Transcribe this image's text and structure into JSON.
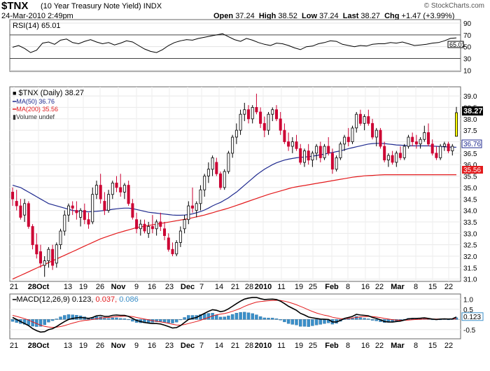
{
  "header": {
    "symbol": "$TNX",
    "name": "(10 Year Treasury Note Yield)",
    "exchange": "INDX",
    "date": "24-Mar-2010 2:49pm",
    "open": "37.24",
    "high": "38.52",
    "low": "37.24",
    "last": "38.27",
    "change": "+1.47 (+3.99%)",
    "credit": "© StockCharts.com"
  },
  "rsi": {
    "label": "RSI(14) 65.01",
    "value": 65.01,
    "ticks": [
      "90",
      "70",
      "50",
      "30",
      "10"
    ],
    "tag": "65.01",
    "values": [
      49,
      52,
      47,
      40,
      44,
      56,
      58,
      54,
      61,
      63,
      57,
      55,
      59,
      62,
      58,
      55,
      57,
      53,
      56,
      60,
      58,
      52,
      46,
      42,
      40,
      45,
      52,
      57,
      60,
      62,
      61,
      64,
      66,
      68,
      70,
      72,
      67,
      62,
      59,
      64,
      61,
      57,
      54,
      52,
      56,
      55,
      52,
      48,
      45,
      50,
      51,
      55,
      57,
      60,
      59,
      54,
      52,
      50,
      52,
      51,
      54,
      55,
      55,
      57,
      56,
      58,
      55,
      52,
      53,
      54,
      56,
      57,
      60,
      64,
      65
    ]
  },
  "price": {
    "label": "$TNX (Daily) 38.27",
    "ma50_label": "MA(50) 36.76",
    "ma200_label": "MA(200) 35.56",
    "volume_label": "Volume undef",
    "ticks": [
      "39.0",
      "38.5",
      "38.0",
      "37.5",
      "37.0",
      "36.5",
      "36.0",
      "35.5",
      "35.0",
      "34.5",
      "34.0",
      "33.5",
      "33.0",
      "32.5",
      "32.0",
      "31.5",
      "31.0"
    ],
    "tag_last": "38.27",
    "tag_ma50": "36.76",
    "tag_ma200": "35.56",
    "colors": {
      "up": "#000000",
      "down": "#cc0033",
      "last": "#ffff00",
      "ma50": "#1f2a8f",
      "ma200": "#e31a1c"
    }
  },
  "macd": {
    "label_prefix": "MACD(12,26,9) 0.123,",
    "signal_value": "0.037,",
    "hist_value": "0.086",
    "ticks": [
      "1.0",
      "0.5",
      "0.123",
      "-0.5"
    ],
    "colors": {
      "macd": "#000000",
      "signal": "#e31a1c",
      "hist": "#3a8fc9",
      "hist_text": "#3a8fc9"
    }
  },
  "x_axis": {
    "labels": [
      {
        "t": "21",
        "x": 20
      },
      {
        "t": "28Oct",
        "x": 55
      },
      {
        "t": "13",
        "x": 97
      },
      {
        "t": "19",
        "x": 119
      },
      {
        "t": "26",
        "x": 143
      },
      {
        "t": "Nov",
        "x": 169
      },
      {
        "t": "9",
        "x": 195
      },
      {
        "t": "16",
        "x": 217
      },
      {
        "t": "23",
        "x": 242
      },
      {
        "t": "Dec",
        "x": 268
      },
      {
        "t": "7",
        "x": 288
      },
      {
        "t": "14",
        "x": 313
      },
      {
        "t": "21",
        "x": 336
      },
      {
        "t": "28",
        "x": 356
      },
      {
        "t": "2010",
        "x": 376
      },
      {
        "t": "11",
        "x": 402
      },
      {
        "t": "19",
        "x": 427
      },
      {
        "t": "25",
        "x": 447
      },
      {
        "t": "Feb",
        "x": 474
      },
      {
        "t": "8",
        "x": 497
      },
      {
        "t": "16",
        "x": 522
      },
      {
        "t": "22",
        "x": 542
      },
      {
        "t": "Mar",
        "x": 568
      },
      {
        "t": "8",
        "x": 594
      },
      {
        "t": "15",
        "x": 618
      },
      {
        "t": "22",
        "x": 641
      }
    ]
  },
  "chart_data": {
    "type": "candlestick",
    "title": "$TNX (10 Year Treasury Note Yield) Daily",
    "y_range": [
      30.9,
      39.4
    ],
    "dates_x_range": [
      "21-Sep-2009",
      "24-Mar-2010"
    ],
    "candles_ohlc": [
      [
        34.8,
        35.0,
        34.2,
        34.5
      ],
      [
        34.4,
        34.9,
        34.0,
        34.2
      ],
      [
        34.2,
        34.5,
        33.6,
        33.7
      ],
      [
        33.8,
        34.5,
        33.5,
        34.3
      ],
      [
        34.3,
        34.4,
        33.2,
        33.3
      ],
      [
        33.3,
        33.4,
        32.3,
        32.5
      ],
      [
        32.5,
        33.0,
        31.9,
        32.1
      ],
      [
        32.2,
        32.5,
        31.5,
        31.7
      ],
      [
        31.6,
        32.0,
        31.1,
        31.8
      ],
      [
        31.8,
        32.4,
        31.5,
        32.3
      ],
      [
        32.3,
        32.5,
        31.4,
        31.6
      ],
      [
        31.7,
        32.6,
        31.5,
        32.5
      ],
      [
        32.5,
        33.2,
        32.3,
        33.1
      ],
      [
        33.1,
        34.0,
        32.9,
        33.8
      ],
      [
        33.8,
        34.3,
        33.5,
        34.2
      ],
      [
        34.2,
        34.4,
        33.8,
        34.1
      ],
      [
        34.0,
        34.4,
        33.6,
        33.9
      ],
      [
        33.7,
        34.1,
        33.3,
        34.0
      ],
      [
        34.0,
        34.3,
        33.4,
        33.6
      ],
      [
        33.6,
        33.9,
        33.2,
        33.4
      ],
      [
        33.5,
        35.0,
        33.4,
        34.7
      ],
      [
        34.7,
        35.3,
        34.5,
        35.1
      ],
      [
        35.1,
        35.6,
        34.3,
        34.5
      ],
      [
        34.4,
        34.8,
        33.8,
        34.0
      ],
      [
        34.0,
        34.9,
        33.9,
        34.7
      ],
      [
        34.7,
        35.3,
        34.5,
        35.2
      ],
      [
        35.2,
        35.5,
        34.8,
        35.0
      ],
      [
        35.0,
        35.6,
        34.6,
        34.8
      ],
      [
        34.8,
        35.2,
        34.5,
        35.1
      ],
      [
        35.1,
        35.3,
        34.2,
        34.3
      ],
      [
        34.3,
        34.5,
        33.6,
        33.7
      ],
      [
        33.6,
        33.9,
        33.0,
        33.2
      ],
      [
        33.2,
        33.6,
        32.9,
        33.4
      ],
      [
        33.4,
        33.6,
        33.0,
        33.1
      ],
      [
        33.0,
        33.5,
        32.8,
        33.3
      ],
      [
        33.3,
        33.8,
        33.0,
        33.2
      ],
      [
        33.2,
        33.6,
        32.9,
        33.5
      ],
      [
        33.5,
        33.9,
        33.1,
        33.3
      ],
      [
        33.2,
        33.5,
        32.7,
        32.9
      ],
      [
        32.8,
        33.0,
        32.2,
        32.3
      ],
      [
        32.3,
        32.6,
        32.0,
        32.1
      ],
      [
        32.1,
        32.7,
        32.0,
        32.6
      ],
      [
        32.6,
        33.3,
        32.4,
        33.1
      ],
      [
        33.2,
        33.8,
        33.0,
        33.6
      ],
      [
        33.6,
        34.4,
        33.4,
        34.2
      ],
      [
        34.2,
        35.0,
        33.9,
        34.1
      ],
      [
        34.0,
        34.4,
        33.7,
        34.3
      ],
      [
        34.3,
        35.1,
        34.0,
        34.9
      ],
      [
        34.9,
        35.6,
        34.6,
        35.5
      ],
      [
        35.5,
        36.1,
        35.2,
        35.8
      ],
      [
        35.8,
        36.4,
        35.5,
        36.3
      ],
      [
        36.1,
        36.3,
        35.5,
        35.6
      ],
      [
        35.6,
        35.7,
        34.9,
        35.0
      ],
      [
        35.0,
        35.8,
        34.9,
        35.7
      ],
      [
        35.7,
        36.6,
        35.6,
        36.5
      ],
      [
        36.5,
        37.3,
        36.3,
        37.2
      ],
      [
        37.2,
        37.8,
        36.9,
        37.5
      ],
      [
        37.5,
        38.4,
        37.3,
        38.2
      ],
      [
        38.2,
        38.7,
        37.9,
        38.4
      ],
      [
        38.4,
        38.6,
        37.8,
        38.0
      ],
      [
        38.0,
        38.6,
        37.8,
        38.5
      ],
      [
        38.5,
        39.1,
        38.2,
        38.3
      ],
      [
        38.3,
        38.5,
        37.6,
        37.8
      ],
      [
        37.8,
        38.1,
        37.2,
        37.5
      ],
      [
        37.5,
        38.3,
        37.3,
        38.2
      ],
      [
        38.2,
        38.5,
        37.9,
        38.4
      ],
      [
        38.4,
        38.6,
        37.9,
        38.0
      ],
      [
        38.0,
        38.3,
        37.3,
        37.5
      ],
      [
        37.5,
        37.8,
        36.9,
        37.0
      ],
      [
        37.0,
        37.4,
        36.6,
        36.8
      ],
      [
        36.8,
        37.2,
        36.5,
        37.0
      ],
      [
        37.0,
        37.3,
        36.6,
        36.7
      ],
      [
        36.7,
        36.9,
        36.0,
        36.1
      ],
      [
        36.1,
        36.7,
        35.9,
        36.6
      ],
      [
        36.6,
        36.9,
        36.0,
        36.2
      ],
      [
        36.2,
        36.6,
        35.9,
        36.5
      ],
      [
        36.5,
        36.9,
        36.2,
        36.8
      ],
      [
        36.8,
        37.0,
        36.1,
        36.3
      ],
      [
        36.3,
        36.9,
        36.2,
        36.8
      ],
      [
        36.8,
        37.2,
        36.4,
        36.5
      ],
      [
        36.5,
        36.7,
        35.6,
        35.8
      ],
      [
        35.8,
        36.4,
        35.7,
        36.3
      ],
      [
        36.3,
        37.0,
        36.2,
        36.9
      ],
      [
        36.9,
        37.3,
        36.6,
        37.2
      ],
      [
        37.2,
        37.6,
        36.8,
        37.0
      ],
      [
        37.0,
        37.7,
        36.9,
        37.6
      ],
      [
        37.6,
        38.3,
        37.4,
        38.2
      ],
      [
        38.2,
        38.4,
        37.7,
        37.8
      ],
      [
        37.8,
        38.2,
        37.5,
        38.1
      ],
      [
        38.1,
        38.4,
        37.7,
        37.8
      ],
      [
        37.8,
        38.0,
        37.1,
        37.2
      ],
      [
        37.2,
        37.6,
        36.8,
        37.5
      ],
      [
        37.5,
        37.6,
        36.7,
        36.8
      ],
      [
        36.8,
        37.0,
        36.1,
        36.2
      ],
      [
        36.2,
        36.5,
        35.9,
        36.4
      ],
      [
        36.4,
        36.6,
        36.0,
        36.1
      ],
      [
        36.1,
        36.6,
        35.9,
        36.5
      ],
      [
        36.5,
        36.8,
        36.2,
        36.3
      ],
      [
        36.3,
        36.9,
        36.2,
        36.8
      ],
      [
        36.8,
        37.3,
        36.7,
        37.2
      ],
      [
        37.2,
        37.4,
        36.8,
        37.0
      ],
      [
        37.0,
        37.3,
        36.7,
        36.9
      ],
      [
        36.9,
        37.2,
        36.7,
        37.1
      ],
      [
        37.1,
        37.7,
        37.0,
        37.4
      ],
      [
        37.4,
        37.8,
        36.8,
        36.9
      ],
      [
        36.9,
        37.1,
        36.4,
        36.5
      ],
      [
        36.5,
        36.8,
        36.2,
        36.3
      ],
      [
        36.3,
        36.9,
        36.2,
        36.8
      ],
      [
        36.8,
        37.0,
        36.6,
        36.9
      ],
      [
        36.9,
        37.0,
        36.5,
        36.6
      ],
      [
        36.6,
        36.9,
        36.4,
        36.8
      ],
      [
        37.24,
        38.52,
        37.24,
        38.27
      ]
    ],
    "ma50": [
      35.1,
      35.05,
      35.0,
      34.9,
      34.8,
      34.7,
      34.6,
      34.5,
      34.4,
      34.3,
      34.25,
      34.2,
      34.15,
      34.1,
      34.05,
      34.0,
      33.98,
      33.96,
      33.95,
      33.94,
      33.95,
      33.96,
      33.98,
      34.0,
      34.02,
      34.05,
      34.07,
      34.09,
      34.1,
      34.1,
      34.08,
      34.04,
      34.0,
      33.96,
      33.92,
      33.9,
      33.88,
      33.86,
      33.84,
      33.82,
      33.8,
      33.79,
      33.79,
      33.8,
      33.82,
      33.85,
      33.9,
      33.95,
      34.02,
      34.1,
      34.2,
      34.28,
      34.35,
      34.45,
      34.55,
      34.68,
      34.8,
      34.95,
      35.1,
      35.25,
      35.4,
      35.55,
      35.68,
      35.8,
      35.9,
      36.0,
      36.08,
      36.14,
      36.2,
      36.24,
      36.27,
      36.3,
      36.32,
      36.33,
      36.35,
      36.37,
      36.4,
      36.43,
      36.46,
      36.5,
      36.53,
      36.57,
      36.6,
      36.65,
      36.7,
      36.74,
      36.78,
      36.82,
      36.86,
      36.9,
      36.92,
      36.93,
      36.93,
      36.92,
      36.9,
      36.88,
      36.86,
      36.85,
      36.84,
      36.83,
      36.82,
      36.82,
      36.82,
      36.82,
      36.82,
      36.81,
      36.8,
      36.79,
      36.78,
      36.77,
      36.76,
      36.76
    ],
    "ma200": [
      31.0,
      31.08,
      31.16,
      31.24,
      31.32,
      31.4,
      31.48,
      31.56,
      31.64,
      31.72,
      31.8,
      31.88,
      31.96,
      32.04,
      32.12,
      32.2,
      32.28,
      32.36,
      32.44,
      32.52,
      32.6,
      32.68,
      32.76,
      32.82,
      32.88,
      32.94,
      33.0,
      33.05,
      33.1,
      33.15,
      33.2,
      33.25,
      33.28,
      33.31,
      33.34,
      33.37,
      33.4,
      33.43,
      33.46,
      33.49,
      33.52,
      33.55,
      33.58,
      33.61,
      33.64,
      33.68,
      33.72,
      33.76,
      33.8,
      33.85,
      33.9,
      33.95,
      34.0,
      34.05,
      34.1,
      34.16,
      34.22,
      34.28,
      34.34,
      34.4,
      34.46,
      34.52,
      34.58,
      34.64,
      34.7,
      34.75,
      34.8,
      34.85,
      34.9,
      34.95,
      35.0,
      35.03,
      35.06,
      35.09,
      35.12,
      35.15,
      35.18,
      35.21,
      35.24,
      35.27,
      35.3,
      35.33,
      35.36,
      35.39,
      35.42,
      35.45,
      35.47,
      35.49,
      35.51,
      35.52,
      35.53,
      35.54,
      35.55,
      35.56,
      35.56,
      35.56,
      35.56,
      35.56,
      35.56,
      35.56,
      35.56,
      35.56,
      35.56,
      35.56,
      35.56,
      35.56,
      35.56,
      35.56,
      35.56,
      35.56,
      35.56,
      35.56
    ],
    "macd": {
      "y_range": [
        -0.95,
        1.25
      ],
      "macd_line": [
        0.1,
        0.0,
        -0.1,
        -0.2,
        -0.3,
        -0.45,
        -0.55,
        -0.62,
        -0.6,
        -0.5,
        -0.45,
        -0.35,
        -0.22,
        -0.1,
        0.0,
        0.05,
        0.08,
        0.1,
        0.08,
        0.05,
        0.1,
        0.18,
        0.2,
        0.15,
        0.15,
        0.2,
        0.22,
        0.2,
        0.2,
        0.15,
        0.05,
        -0.05,
        -0.1,
        -0.15,
        -0.18,
        -0.2,
        -0.2,
        -0.22,
        -0.28,
        -0.35,
        -0.42,
        -0.4,
        -0.3,
        -0.15,
        0.0,
        0.05,
        0.1,
        0.2,
        0.3,
        0.4,
        0.48,
        0.45,
        0.38,
        0.42,
        0.52,
        0.65,
        0.78,
        0.9,
        1.0,
        1.05,
        1.08,
        1.08,
        1.02,
        0.98,
        0.99,
        1.0,
        0.98,
        0.9,
        0.78,
        0.65,
        0.55,
        0.45,
        0.3,
        0.22,
        0.12,
        0.08,
        0.05,
        0.02,
        0.01,
        0.0,
        -0.12,
        -0.12,
        -0.05,
        0.05,
        0.1,
        0.15,
        0.25,
        0.22,
        0.2,
        0.18,
        0.1,
        0.05,
        -0.02,
        -0.1,
        -0.12,
        -0.13,
        -0.1,
        -0.08,
        -0.03,
        0.03,
        0.05,
        0.05,
        0.06,
        0.08,
        0.05,
        0.02,
        0.0,
        0.02,
        0.03,
        0.02,
        0.03,
        0.123
      ],
      "signal_line": [
        0.2,
        0.15,
        0.1,
        0.04,
        -0.03,
        -0.12,
        -0.2,
        -0.28,
        -0.34,
        -0.37,
        -0.39,
        -0.38,
        -0.35,
        -0.3,
        -0.24,
        -0.18,
        -0.13,
        -0.08,
        -0.05,
        -0.03,
        0.0,
        0.04,
        0.07,
        0.09,
        0.1,
        0.12,
        0.14,
        0.15,
        0.16,
        0.16,
        0.14,
        0.1,
        0.06,
        0.02,
        -0.02,
        -0.06,
        -0.09,
        -0.12,
        -0.15,
        -0.19,
        -0.24,
        -0.27,
        -0.28,
        -0.25,
        -0.2,
        -0.15,
        -0.1,
        -0.04,
        0.03,
        0.1,
        0.17,
        0.23,
        0.26,
        0.29,
        0.34,
        0.4,
        0.47,
        0.55,
        0.64,
        0.72,
        0.79,
        0.85,
        0.88,
        0.9,
        0.92,
        0.93,
        0.94,
        0.93,
        0.9,
        0.85,
        0.79,
        0.72,
        0.64,
        0.56,
        0.47,
        0.39,
        0.32,
        0.26,
        0.21,
        0.17,
        0.11,
        0.07,
        0.04,
        0.04,
        0.05,
        0.07,
        0.1,
        0.13,
        0.14,
        0.15,
        0.14,
        0.12,
        0.09,
        0.05,
        0.02,
        -0.01,
        -0.03,
        -0.04,
        -0.04,
        -0.03,
        -0.01,
        0.0,
        0.01,
        0.02,
        0.02,
        0.02,
        0.02,
        0.02,
        0.02,
        0.02,
        0.02,
        0.037
      ]
    }
  }
}
